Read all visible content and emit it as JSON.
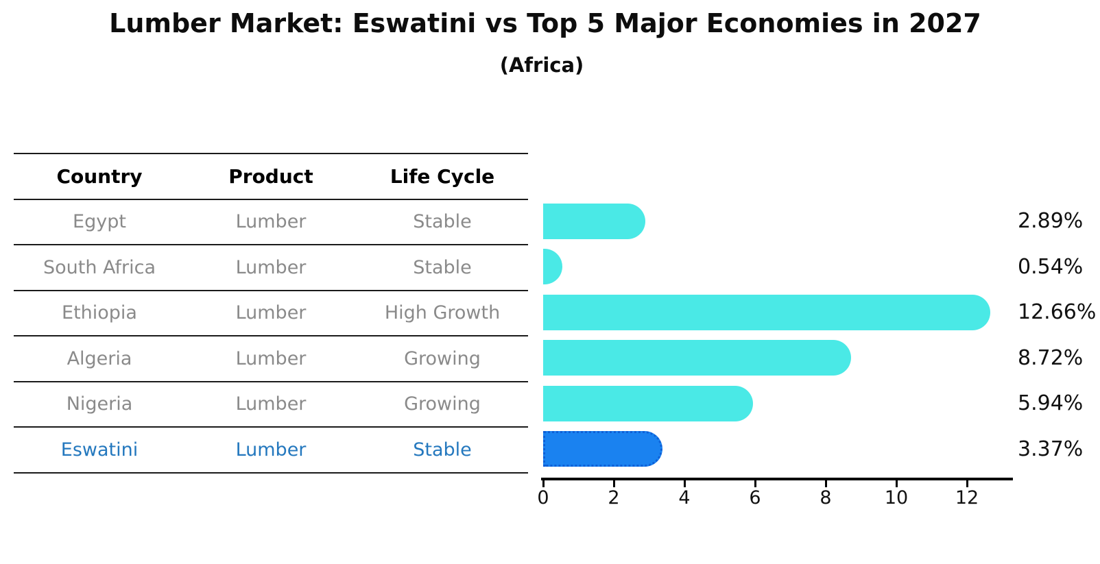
{
  "chart_data": {
    "type": "bar",
    "orientation": "horizontal",
    "title": "Lumber Market: Eswatini vs Top 5 Major Economies in 2027",
    "subtitle": "(Africa)",
    "categories": [
      "Egypt",
      "South Africa",
      "Ethiopia",
      "Algeria",
      "Nigeria",
      "Eswatini"
    ],
    "values": [
      2.89,
      0.54,
      12.66,
      8.72,
      5.94,
      3.37
    ],
    "value_labels": [
      "2.89%",
      "0.54%",
      "12.66%",
      "8.72%",
      "5.94%",
      "3.37%"
    ],
    "highlight_index": 5,
    "xlabel": "",
    "ylabel": "",
    "xlim": [
      0,
      13.3
    ],
    "xticks": [
      0,
      2,
      4,
      6,
      8,
      10,
      12
    ],
    "grid": false,
    "legend": false,
    "colors": {
      "bar_default": "#4AE9E6",
      "bar_highlight": "#1A82F0",
      "highlight_border": "#0E5FD6",
      "highlight_text": "#2478BE",
      "row_text": "#8A8A8A",
      "axis": "#000000"
    }
  },
  "table": {
    "headers": [
      "Country",
      "Product",
      "Life Cycle"
    ],
    "rows": [
      {
        "country": "Egypt",
        "product": "Lumber",
        "life_cycle": "Stable",
        "value_label": "2.89%",
        "highlight": false
      },
      {
        "country": "South Africa",
        "product": "Lumber",
        "life_cycle": "Stable",
        "value_label": "0.54%",
        "highlight": false
      },
      {
        "country": "Ethiopia",
        "product": "Lumber",
        "life_cycle": "High Growth",
        "value_label": "12.66%",
        "highlight": false
      },
      {
        "country": "Algeria",
        "product": "Lumber",
        "life_cycle": "Growing",
        "value_label": "8.72%",
        "highlight": false
      },
      {
        "country": "Nigeria",
        "product": "Lumber",
        "life_cycle": "Growing",
        "value_label": "5.94%",
        "highlight": false
      },
      {
        "country": "Eswatini",
        "product": "Lumber",
        "life_cycle": "Stable",
        "value_label": "3.37%",
        "highlight": true
      }
    ]
  }
}
